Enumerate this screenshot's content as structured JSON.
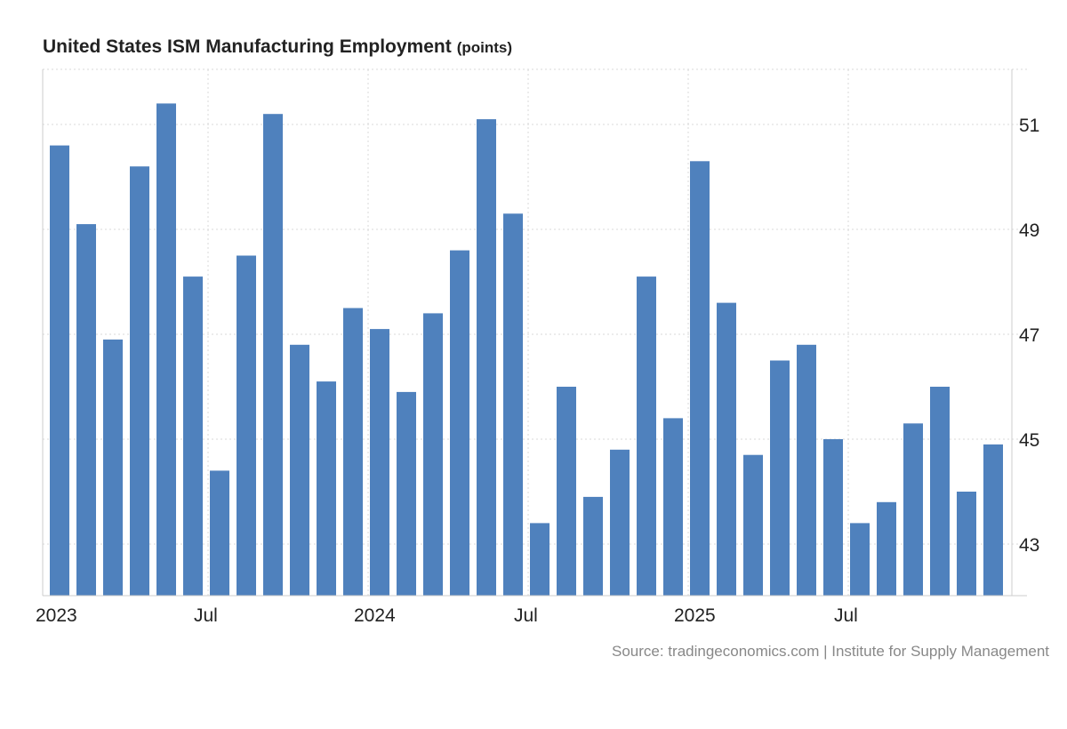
{
  "chart_data": {
    "type": "bar",
    "title": "United States ISM Manufacturing Employment",
    "unit": "(points)",
    "source": "Source: tradingeconomics.com | Institute for Supply Management",
    "color": "#4f81bd",
    "ylim": [
      42,
      52
    ],
    "yticks": [
      43,
      45,
      47,
      49,
      51
    ],
    "xticks": [
      {
        "label": "2023",
        "index": 0
      },
      {
        "label": "Jul",
        "index": 6
      },
      {
        "label": "2024",
        "index": 12
      },
      {
        "label": "Jul",
        "index": 18
      },
      {
        "label": "2025",
        "index": 24
      },
      {
        "label": "Jul",
        "index": 30
      }
    ],
    "categories": [
      "Jan 2023",
      "Feb 2023",
      "Mar 2023",
      "Apr 2023",
      "May 2023",
      "Jun 2023",
      "Jul 2023",
      "Aug 2023",
      "Sep 2023",
      "Oct 2023",
      "Nov 2023",
      "Dec 2023",
      "Jan 2024",
      "Feb 2024",
      "Mar 2024",
      "Apr 2024",
      "May 2024",
      "Jun 2024",
      "Jul 2024",
      "Aug 2024",
      "Sep 2024",
      "Oct 2024",
      "Nov 2024",
      "Dec 2024",
      "Jan 2025",
      "Feb 2025",
      "Mar 2025",
      "Apr 2025",
      "May 2025",
      "Jun 2025",
      "Jul 2025",
      "Aug 2025",
      "Sep 2025",
      "Oct 2025",
      "Nov 2025",
      "Dec 2025"
    ],
    "values": [
      50.6,
      49.1,
      46.9,
      50.2,
      51.4,
      48.1,
      44.4,
      48.5,
      51.2,
      46.8,
      46.1,
      47.5,
      47.1,
      45.9,
      47.4,
      48.6,
      51.1,
      49.3,
      43.4,
      46.0,
      43.9,
      44.8,
      48.1,
      45.4,
      50.3,
      47.6,
      44.7,
      46.5,
      46.8,
      45.0,
      43.4,
      43.8,
      45.3,
      46.0,
      44.0,
      44.9
    ]
  }
}
